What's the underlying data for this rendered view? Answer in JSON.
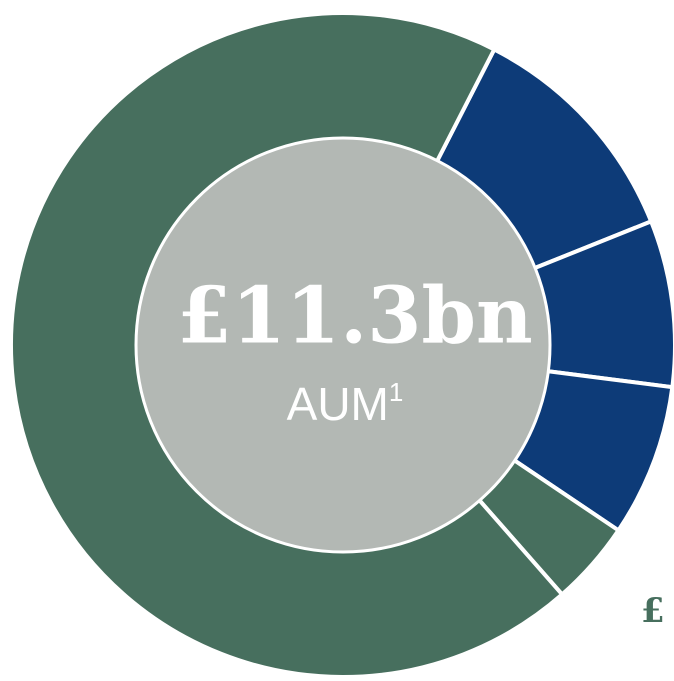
{
  "chart_data": {
    "type": "donut",
    "title": "£11.3bn",
    "subtitle": "AUM",
    "footnote_marker": "1",
    "values": [
      11.4,
      8.1,
      7.4,
      4.1,
      69.0
    ],
    "colors": [
      "#0d3b78",
      "#0d3b78",
      "#0d3b78",
      "#476f5e",
      "#476f5e"
    ],
    "center_color": "#b3b8b4",
    "annotations": [
      "£"
    ]
  }
}
